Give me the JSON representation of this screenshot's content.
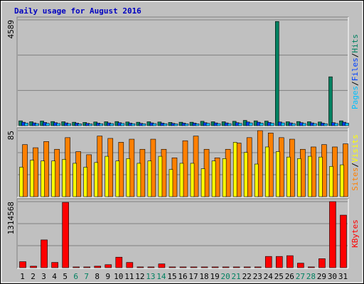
{
  "chart_data": {
    "type": "webalizer",
    "title": "Daily usage for August 2016",
    "title_color": "#0000c0",
    "categories": [
      "1",
      "2",
      "3",
      "4",
      "5",
      "6",
      "7",
      "8",
      "9",
      "10",
      "11",
      "12",
      "13",
      "14",
      "15",
      "16",
      "17",
      "18",
      "19",
      "20",
      "21",
      "22",
      "23",
      "24",
      "25",
      "26",
      "27",
      "28",
      "29",
      "30",
      "31"
    ],
    "category_colors": [
      "#000000",
      "#000000",
      "#000000",
      "#000000",
      "#000000",
      "#008060",
      "#008060",
      "#000000",
      "#000000",
      "#000000",
      "#000000",
      "#000000",
      "#008060",
      "#008060",
      "#000000",
      "#000000",
      "#000000",
      "#000000",
      "#000000",
      "#008060",
      "#008060",
      "#000000",
      "#000000",
      "#000000",
      "#000000",
      "#000000",
      "#008060",
      "#008060",
      "#000000",
      "#000000",
      "#000000"
    ],
    "legend_separator": "/",
    "panels": [
      {
        "ylim": [
          0,
          4589
        ],
        "yticks": [
          4589
        ],
        "series": [
          {
            "name": "Hits",
            "color": "#008060",
            "values": [
              210,
              170,
              200,
              180,
              170,
              150,
              140,
              160,
              170,
              180,
              160,
              150,
              170,
              160,
              140,
              150,
              150,
              190,
              170,
              170,
              190,
              230,
              210,
              200,
              4520,
              170,
              180,
              170,
              160,
              2120,
              210
            ]
          },
          {
            "name": "Files",
            "color": "#0040ff",
            "values": [
              150,
              120,
              140,
              130,
              120,
              110,
              100,
              110,
              120,
              130,
              110,
              100,
              120,
              110,
              100,
              110,
              110,
              130,
              120,
              120,
              130,
              160,
              150,
              140,
              160,
              120,
              130,
              120,
              110,
              130,
              150
            ]
          },
          {
            "name": "Pages",
            "color": "#00c0ff",
            "values": [
              110,
              90,
              100,
              95,
              90,
              80,
              75,
              85,
              90,
              95,
              85,
              80,
              90,
              85,
              75,
              80,
              80,
              100,
              90,
              90,
              100,
              120,
              110,
              105,
              120,
              90,
              95,
              90,
              85,
              95,
              110
            ]
          }
        ]
      },
      {
        "ylim": [
          0,
          85
        ],
        "yticks": [
          85
        ],
        "series": [
          {
            "name": "Visits",
            "color": "#ffff00",
            "values": [
              38,
              47,
              46,
              46,
              48,
              43,
              38,
              44,
              52,
              46,
              49,
              43,
              46,
              52,
              35,
              43,
              43,
              36,
              46,
              49,
              70,
              57,
              42,
              64,
              58,
              51,
              49,
              52,
              51,
              39,
              41
            ]
          },
          {
            "name": "Sites",
            "color": "#ff8000",
            "values": [
              67,
              63,
              71,
              61,
              76,
              58,
              54,
              78,
              75,
              70,
              74,
              61,
              74,
              61,
              50,
              72,
              78,
              61,
              50,
              61,
              69,
              76,
              85,
              82,
              76,
              74,
              61,
              64,
              67,
              64,
              68
            ]
          }
        ]
      },
      {
        "ylim": [
          0,
          1314568
        ],
        "yticks": [
          1314568
        ],
        "series": [
          {
            "name": "KBytes",
            "color": "#ff0000",
            "values": [
              119506,
              30000,
              552700,
              104600,
              1299630,
              15000,
              15000,
              30000,
              60000,
              209000,
              104600,
              15000,
              15000,
              75000,
              15000,
              15000,
              15000,
              15000,
              15000,
              15000,
              15000,
              15000,
              15000,
              224000,
              224000,
              239000,
              90000,
              15000,
              179000,
              1314568,
              1045700
            ]
          }
        ]
      }
    ]
  }
}
